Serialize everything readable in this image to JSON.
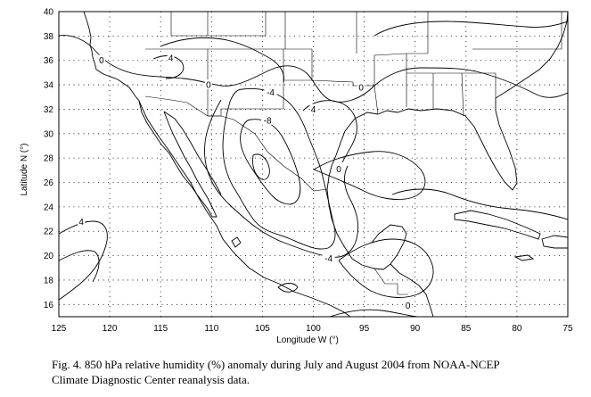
{
  "chart_data": {
    "type": "contour",
    "xlabel": "Longitude W (°)",
    "ylabel": "Latitude N (°)",
    "xlim": [
      125,
      75
    ],
    "ylim": [
      15,
      40
    ],
    "x_ticks": [
      125,
      120,
      115,
      110,
      105,
      100,
      95,
      90,
      85,
      80,
      75
    ],
    "y_ticks": [
      16,
      18,
      20,
      22,
      24,
      26,
      28,
      30,
      32,
      34,
      36,
      38,
      40
    ],
    "grid": "dotted",
    "contour_labels": [
      {
        "text": "0",
        "lon": 120.8,
        "lat": 36.0
      },
      {
        "text": "4",
        "lon": 114.0,
        "lat": 36.2
      },
      {
        "text": "0",
        "lon": 110.3,
        "lat": 34.0
      },
      {
        "text": "-4",
        "lon": 104.2,
        "lat": 33.4
      },
      {
        "text": "-8",
        "lon": 104.5,
        "lat": 31.1
      },
      {
        "text": "4",
        "lon": 100.0,
        "lat": 32.0
      },
      {
        "text": "0",
        "lon": 95.3,
        "lat": 33.8
      },
      {
        "text": "0",
        "lon": 97.5,
        "lat": 27.1
      },
      {
        "text": "4",
        "lon": 122.8,
        "lat": 22.8
      },
      {
        "text": "-4",
        "lon": 98.5,
        "lat": 19.8
      },
      {
        "text": "0",
        "lon": 90.7,
        "lat": 15.9
      }
    ]
  },
  "caption": {
    "line1": "Fig. 4. 850 hPa relative humidity (%) anomaly during July and August 2004 from NOAA-NCEP",
    "line2": "Climate Diagnostic Center reanalysis data."
  }
}
